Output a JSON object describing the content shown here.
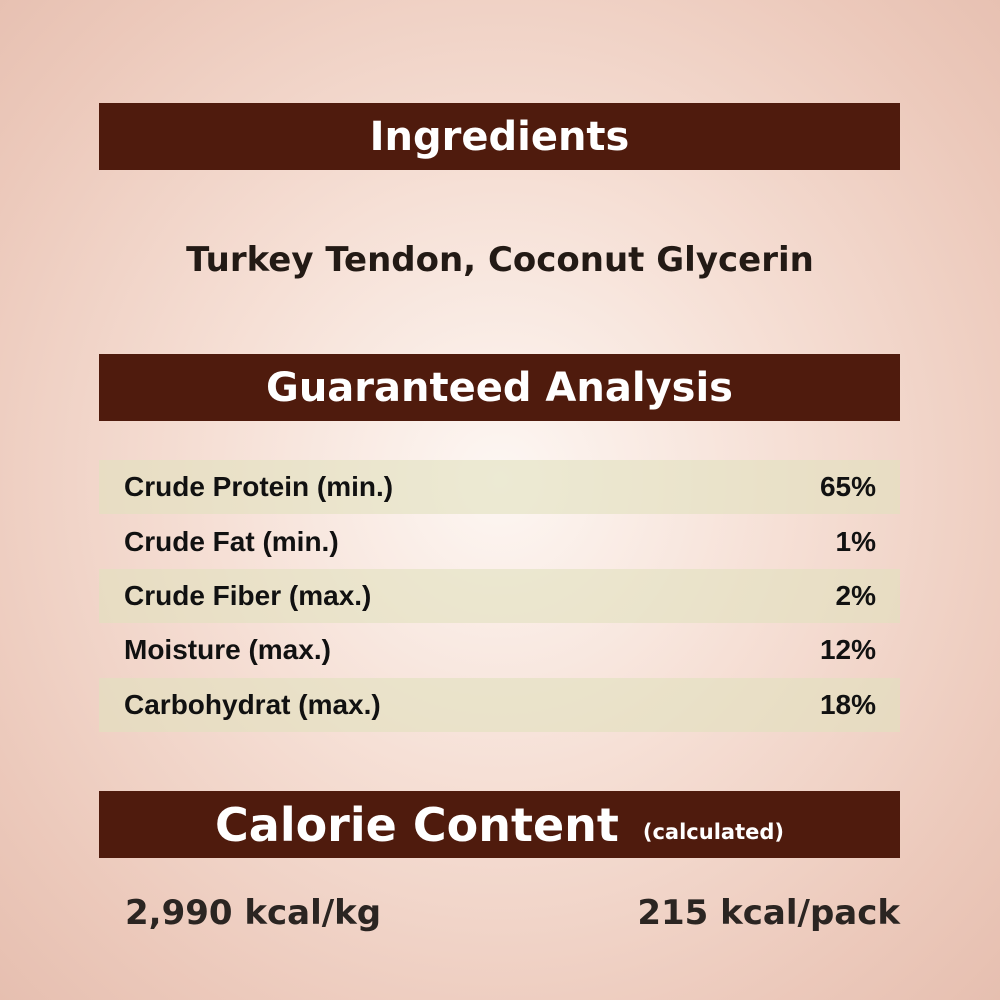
{
  "ingredients": {
    "title": "Ingredients",
    "text": "Turkey Tendon, Coconut Glycerin"
  },
  "analysis": {
    "title": "Guaranteed Analysis",
    "rows": [
      {
        "label": "Crude Protein (min.)",
        "value": "65%"
      },
      {
        "label": "Crude Fat (min.)",
        "value": "1%"
      },
      {
        "label": "Crude Fiber (max.)",
        "value": "2%"
      },
      {
        "label": "Moisture (max.)",
        "value": "12%"
      },
      {
        "label": "Carbohydrat (max.)",
        "value": "18%"
      }
    ]
  },
  "calorie": {
    "title": "Calorie Content",
    "subtitle": "(calculated)",
    "per_kg": "2,990 kcal/kg",
    "per_pack": "215 kcal/pack"
  },
  "colors": {
    "banner": "#4f1b0d",
    "row_shade": "#e1e1be"
  }
}
